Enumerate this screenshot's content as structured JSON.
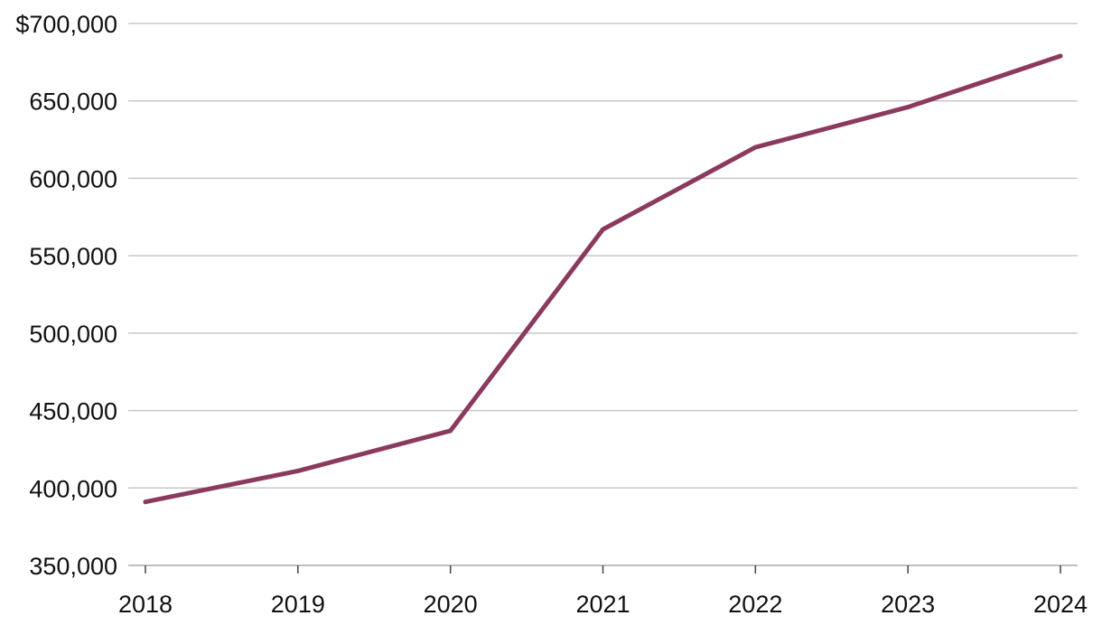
{
  "chart_data": {
    "type": "line",
    "x": [
      "2018",
      "2019",
      "2020",
      "2021",
      "2022",
      "2023",
      "2024"
    ],
    "series": [
      {
        "values": [
          391000,
          411000,
          437000,
          567000,
          620000,
          646000,
          679000
        ]
      }
    ],
    "ylim": [
      350000,
      700000
    ],
    "yticks": [
      350000,
      400000,
      450000,
      500000,
      550000,
      600000,
      650000,
      700000
    ],
    "ytick_labels": [
      "350,000",
      "400,000",
      "450,000",
      "500,000",
      "550,000",
      "600,000",
      "650,000",
      "$700,000"
    ],
    "xtick_labels": [
      "2018",
      "2019",
      "2020",
      "2021",
      "2022",
      "2023",
      "2024"
    ],
    "grid": true,
    "colors": {
      "series": "#8b3a5e"
    }
  }
}
